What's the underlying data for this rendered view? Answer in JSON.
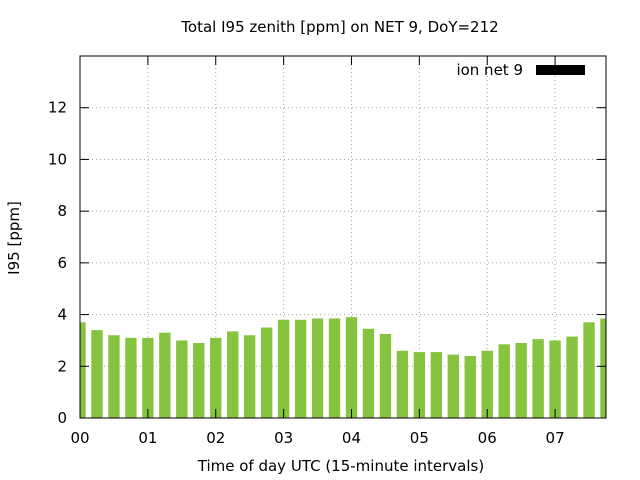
{
  "chart_data": {
    "type": "bar",
    "title": "Total I95 zenith [ppm] on NET 9, DoY=212",
    "xlabel": "Time of day UTC (15-minute intervals)",
    "ylabel": "I95 [ppm]",
    "ylim": [
      0,
      14
    ],
    "yticks": [
      0,
      2,
      4,
      6,
      8,
      10,
      12
    ],
    "xlim_hours": [
      0,
      7.75
    ],
    "xticks": [
      {
        "hour": 0,
        "label": "00"
      },
      {
        "hour": 1,
        "label": "01"
      },
      {
        "hour": 2,
        "label": "02"
      },
      {
        "hour": 3,
        "label": "03"
      },
      {
        "hour": 4,
        "label": "04"
      },
      {
        "hour": 5,
        "label": "05"
      },
      {
        "hour": 6,
        "label": "06"
      },
      {
        "hour": 7,
        "label": "07"
      }
    ],
    "grid": true,
    "legend_position": "top-right",
    "series": [
      {
        "name": "ion net 9",
        "bar_color": "#86c440",
        "legend_color": "#000000",
        "x_hours": [
          0,
          0.25,
          0.5,
          0.75,
          1,
          1.25,
          1.5,
          1.75,
          2,
          2.25,
          2.5,
          2.75,
          3,
          3.25,
          3.5,
          3.75,
          4,
          4.25,
          4.5,
          4.75,
          5,
          5.25,
          5.5,
          5.75,
          6,
          6.25,
          6.5,
          6.75,
          7,
          7.25,
          7.5,
          7.75
        ],
        "values": [
          3.7,
          3.4,
          3.2,
          3.1,
          3.1,
          3.3,
          3.0,
          2.9,
          3.1,
          3.35,
          3.2,
          3.5,
          3.8,
          3.8,
          3.85,
          3.85,
          3.9,
          3.45,
          3.25,
          2.6,
          2.55,
          2.55,
          2.45,
          2.4,
          2.6,
          2.85,
          2.9,
          3.05,
          3.0,
          3.15,
          3.7,
          3.85
        ]
      }
    ]
  }
}
